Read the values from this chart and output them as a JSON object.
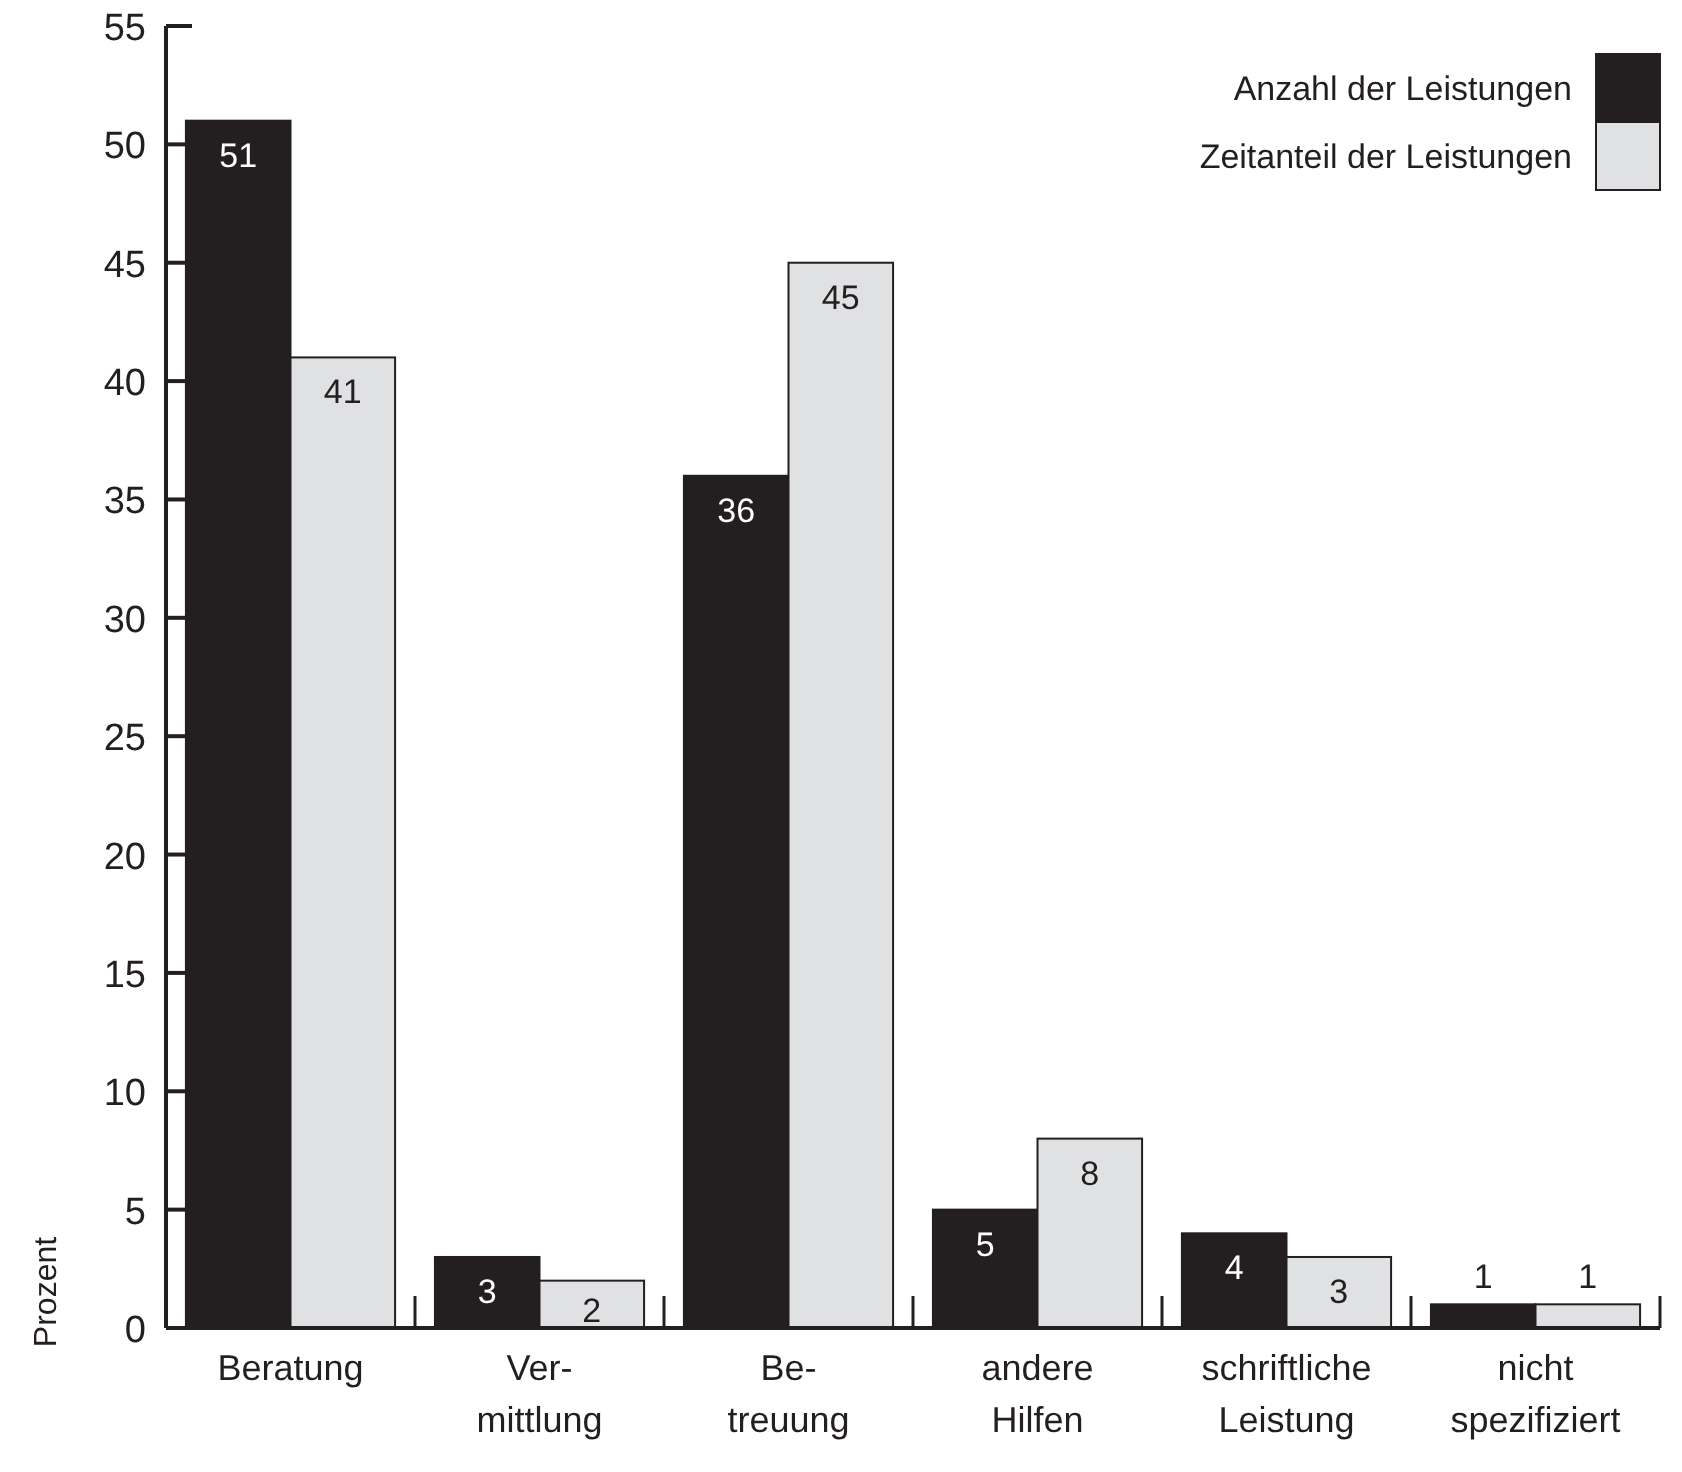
{
  "chart_data": {
    "type": "bar",
    "ylabel": "Prozent",
    "categories": [
      "Beratung",
      "Ver-\nmittlung",
      "Be-\ntreuung",
      "andere\nHilfen",
      "schriftliche\nLeistung",
      "nicht\nspezifiziert"
    ],
    "series": [
      {
        "name": "Anzahl der Leistungen",
        "color": "#231f20",
        "values": [
          51,
          3,
          36,
          5,
          4,
          1
        ]
      },
      {
        "name": "Zeitanteil der Leistungen",
        "color": "#e0e1e3",
        "values": [
          41,
          2,
          45,
          8,
          3,
          1
        ]
      }
    ],
    "ylim": [
      0,
      55
    ],
    "yticks": [
      0,
      5,
      10,
      15,
      20,
      25,
      30,
      35,
      40,
      45,
      50,
      55
    ],
    "data_labels": true,
    "legend": "top right",
    "grid": false
  }
}
